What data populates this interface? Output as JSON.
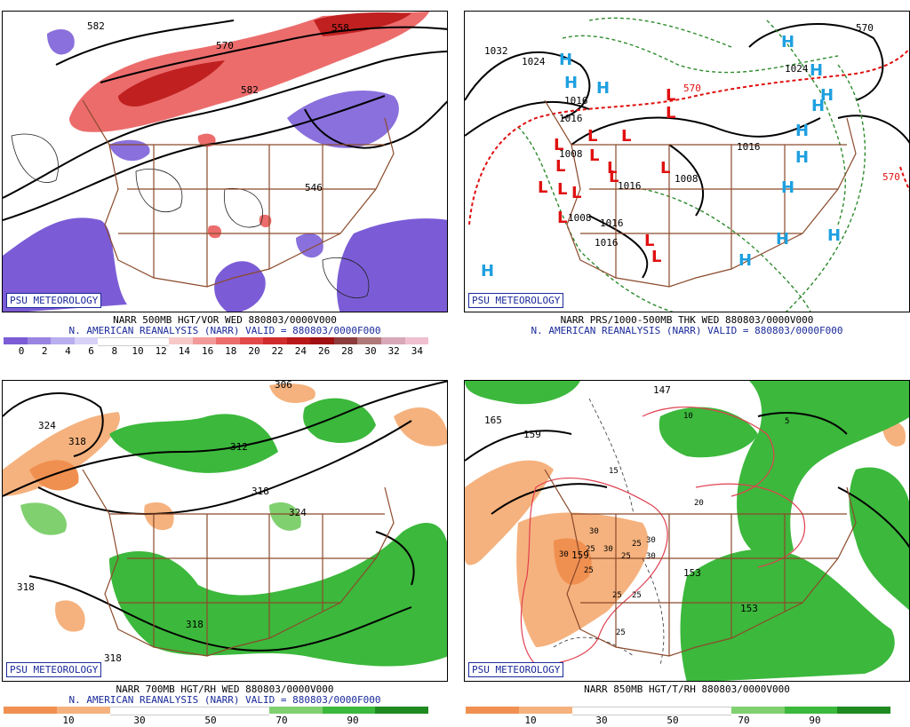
{
  "logo": "PSU METEOROLOGY",
  "panels": [
    {
      "caption1": "NARR 500MB HGT/VOR WED 880803/0000V000",
      "caption2": "N. AMERICAN REANALYSIS (NARR) VALID = 880803/0000F000",
      "contour_labels": [
        "582",
        "570",
        "558",
        "582",
        "546"
      ],
      "colorbar": {
        "colors": [
          "#7b5cd6",
          "#9a84e2",
          "#b9aeee",
          "#d8d2f6",
          "#ffffff",
          "#ffffff",
          "#ffffff",
          "#f7c8c8",
          "#f29a9a",
          "#ec6c6c",
          "#e24a4a",
          "#d02c2c",
          "#b81818",
          "#a01010",
          "#8c3c3c",
          "#b07878",
          "#d8a8b8",
          "#f0c0d0"
        ],
        "labels": [
          "0",
          "2",
          "4",
          "6",
          "8",
          "10",
          "12",
          "14",
          "16",
          "18",
          "20",
          "22",
          "24",
          "26",
          "28",
          "30",
          "32",
          "34"
        ]
      }
    },
    {
      "caption1": "NARR PRS/1000-500MB THK WED 880803/0000V000",
      "caption2": "N. AMERICAN REANALYSIS (NARR) VALID = 880803/0000F000",
      "contour_labels": [
        "1032",
        "1024",
        "1016",
        "1016",
        "1008",
        "1008",
        "1016",
        "1016",
        "1016",
        "1024",
        "1016",
        "1008",
        "570",
        "570",
        "570"
      ],
      "pressure_centers": [
        "H",
        "L"
      ]
    },
    {
      "caption1": "NARR 700MB HGT/RH WED 880803/0000V000",
      "caption2": "N. AMERICAN REANALYSIS (NARR) VALID = 880803/0000F000",
      "contour_labels": [
        "324",
        "318",
        "312",
        "318",
        "324",
        "318",
        "318",
        "318",
        "306"
      ],
      "colorbar": {
        "colors": [
          "#f09050",
          "#f5b27e",
          "#ffffff",
          "#ffffff",
          "#ffffff",
          "#80d070",
          "#3cb83c",
          "#1f8a1f"
        ],
        "labels": [
          "10",
          "30",
          "50",
          "70",
          "90"
        ]
      }
    },
    {
      "caption1": "NARR 850MB HGT/T/RH 880803/0000V000",
      "contour_labels": [
        "165",
        "159",
        "147",
        "153",
        "159",
        "153"
      ],
      "temp_labels": [
        "10",
        "5",
        "15",
        "20",
        "30",
        "30",
        "30",
        "25",
        "30",
        "25",
        "25",
        "30",
        "25",
        "25",
        "25",
        "25"
      ],
      "colorbar": {
        "colors": [
          "#f09050",
          "#f5b27e",
          "#ffffff",
          "#ffffff",
          "#ffffff",
          "#80d070",
          "#3cb83c",
          "#1f8a1f"
        ],
        "labels": [
          "10",
          "30",
          "50",
          "70",
          "90"
        ]
      }
    }
  ]
}
